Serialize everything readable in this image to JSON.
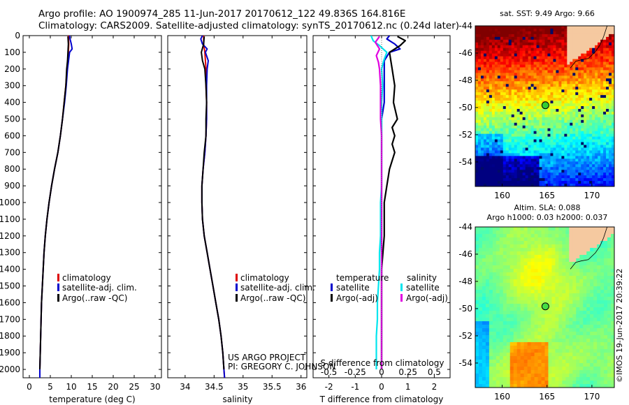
{
  "title_line1": "Argo profile: AO 1900974_285 11-Jun-2017 20170612_122 49.836S 164.816E",
  "title_line2": "Climatology: CARS2009. Satellite-adjusted climatology: synTS_20170612.nc (0.24d later)",
  "colors": {
    "climatology": "#dd0000",
    "satellite": "#0000cc",
    "argo": "#000000",
    "sal_satellite": "#00e5ee",
    "sal_argo": "#e000e0"
  },
  "chart_data": [
    {
      "type": "line",
      "id": "temperature",
      "xlabel": "temperature (deg C)",
      "ylabel": "",
      "xlim": [
        -1.5,
        31.5
      ],
      "ylim": [
        2050,
        0
      ],
      "x_ticks": [
        0,
        5,
        10,
        15,
        20,
        25,
        30
      ],
      "x_tick_labels": [
        "0",
        "5",
        "10",
        "15",
        "20",
        "25",
        "30"
      ],
      "y_ticks": [
        0,
        100,
        200,
        300,
        400,
        500,
        600,
        700,
        800,
        900,
        1000,
        1100,
        1200,
        1300,
        1400,
        1500,
        1600,
        1700,
        1800,
        1900,
        2000
      ],
      "y_tick_labels": [
        "0",
        "100",
        "200",
        "300",
        "400",
        "500",
        "600",
        "700",
        "800",
        "900",
        "1000",
        "1100",
        "1200",
        "1300",
        "1400",
        "1500",
        "1600",
        "1700",
        "1800",
        "1900",
        "2000"
      ],
      "legend": [
        "climatology",
        "satellite-adj. clim.",
        "Argo(..raw -QC)"
      ],
      "series": [
        {
          "name": "climatology",
          "color_key": "climatology",
          "depth": [
            0,
            50,
            100,
            200,
            300,
            400,
            500,
            600,
            700,
            800,
            900,
            1000,
            1100,
            1200,
            1300,
            1400,
            1500,
            1600,
            1700,
            1800,
            1900,
            2000,
            2050
          ],
          "values": [
            9.3,
            9.4,
            9.3,
            9.0,
            8.7,
            8.3,
            7.9,
            7.4,
            6.8,
            6.0,
            5.3,
            4.7,
            4.2,
            3.8,
            3.5,
            3.3,
            3.1,
            2.9,
            2.8,
            2.7,
            2.6,
            2.5,
            2.5
          ]
        },
        {
          "name": "satellite-adj. clim.",
          "color_key": "satellite",
          "depth": [
            0,
            20,
            50,
            80,
            100,
            200,
            300,
            400,
            500,
            600,
            700,
            800,
            900,
            1000,
            1100,
            1200,
            1300,
            1400,
            1500,
            1600,
            1700,
            1800,
            1900,
            2000,
            2050
          ],
          "values": [
            9.6,
            9.7,
            10.0,
            10.2,
            9.6,
            9.1,
            8.8,
            8.4,
            7.9,
            7.4,
            6.8,
            6.0,
            5.3,
            4.7,
            4.2,
            3.8,
            3.5,
            3.3,
            3.1,
            2.9,
            2.8,
            2.7,
            2.6,
            2.5,
            2.5
          ]
        },
        {
          "name": "Argo(..raw -QC)",
          "color_key": "argo",
          "depth": [
            5,
            50,
            100,
            150,
            200,
            300,
            400,
            500,
            600,
            700,
            800,
            900,
            1000,
            1100,
            1200,
            1300,
            1400,
            1500,
            1600,
            1700,
            1800,
            1900,
            2000
          ],
          "values": [
            9.2,
            9.3,
            9.2,
            9.1,
            8.9,
            8.7,
            8.3,
            7.9,
            7.4,
            6.8,
            6.0,
            5.3,
            4.7,
            4.2,
            3.8,
            3.5,
            3.3,
            3.1,
            2.9,
            2.8,
            2.7,
            2.6,
            2.5
          ]
        }
      ]
    },
    {
      "type": "line",
      "id": "salinity",
      "xlabel": "salinity",
      "xlim": [
        33.7,
        36.1
      ],
      "ylim": [
        2050,
        0
      ],
      "x_ticks": [
        34,
        34.5,
        35,
        35.5,
        36
      ],
      "x_tick_labels": [
        "34",
        "34.5",
        "35",
        "35.5",
        "36"
      ],
      "legend": [
        "climatology",
        "satellite-adj. clim.",
        "Argo(..raw -QC)"
      ],
      "series": [
        {
          "name": "climatology",
          "color_key": "climatology",
          "depth": [
            0,
            50,
            100,
            200,
            300,
            400,
            500,
            600,
            700,
            800,
            900,
            1000,
            1100,
            1200,
            1300,
            1400,
            1500,
            1600,
            1700,
            1800,
            1900,
            2000,
            2050
          ],
          "values": [
            34.32,
            34.32,
            34.34,
            34.36,
            34.36,
            34.37,
            34.37,
            34.36,
            34.34,
            34.31,
            34.29,
            34.29,
            34.3,
            34.33,
            34.38,
            34.43,
            34.48,
            34.53,
            34.58,
            34.62,
            34.65,
            34.67,
            34.68
          ]
        },
        {
          "name": "satellite-adj. clim.",
          "color_key": "satellite",
          "depth": [
            0,
            20,
            50,
            80,
            100,
            150,
            200,
            300,
            400,
            500,
            600,
            700,
            800,
            900,
            1000,
            1100,
            1200,
            1300,
            1400,
            1500,
            1600,
            1700,
            1800,
            1900,
            2000,
            2050
          ],
          "values": [
            34.3,
            34.27,
            34.3,
            34.38,
            34.35,
            34.4,
            34.38,
            34.37,
            34.37,
            34.37,
            34.36,
            34.34,
            34.31,
            34.29,
            34.29,
            34.3,
            34.33,
            34.38,
            34.43,
            34.48,
            34.53,
            34.58,
            34.62,
            34.65,
            34.67,
            34.68
          ]
        },
        {
          "name": "Argo(..raw -QC)",
          "color_key": "argo",
          "depth": [
            5,
            50,
            100,
            150,
            200,
            300,
            400,
            500,
            600,
            700,
            800,
            900,
            1000,
            1100,
            1200,
            1300,
            1400,
            1500,
            1600,
            1700,
            1800,
            1900,
            2000
          ],
          "values": [
            34.33,
            34.32,
            34.28,
            34.3,
            34.34,
            34.36,
            34.37,
            34.36,
            34.36,
            34.33,
            34.31,
            34.29,
            34.29,
            34.3,
            34.33,
            34.38,
            34.43,
            34.48,
            34.53,
            34.58,
            34.62,
            34.65,
            34.67
          ]
        }
      ],
      "annotation_lines": [
        "US ARGO PROJECT",
        "PI: GREGORY C. JOHNSON"
      ]
    },
    {
      "type": "line",
      "id": "difference",
      "xlabel": "T difference from climatology",
      "xlabel_top": "S difference from climatology",
      "xlim": [
        -2.6,
        2.6
      ],
      "ylim": [
        2050,
        0
      ],
      "x_ticks": [
        -2,
        -1,
        0,
        1,
        2
      ],
      "x_tick_labels": [
        "-2",
        "-1",
        "0",
        "1",
        "2"
      ],
      "s_ticks": [
        -0.5,
        -0.25,
        0,
        0.25,
        0.5
      ],
      "s_tick_labels": [
        "-0.5",
        "-0.25",
        "0",
        "0.25",
        "0.5"
      ],
      "s_scale": 4,
      "legend_temperature_title": "temperature",
      "legend_salinity_title": "salinity",
      "legend_temperature": [
        "satellite",
        "Argo(-adj)"
      ],
      "legend_salinity": [
        "satellite",
        "Argo(-adj)"
      ],
      "series": [
        {
          "name": "T satellite",
          "color_key": "satellite",
          "depth": [
            0,
            20,
            50,
            80,
            100,
            150,
            200,
            300,
            400,
            500,
            600,
            700,
            800,
            900,
            1000,
            1200,
            1400,
            1600,
            1800,
            2000
          ],
          "values": [
            0.3,
            0.2,
            0.5,
            0.7,
            0.3,
            0.1,
            0.1,
            0.1,
            0.1,
            0.0,
            0.0,
            0.0,
            0.0,
            0.0,
            0.0,
            0.0,
            0.0,
            0.0,
            0.0,
            0.0
          ]
        },
        {
          "name": "T Argo(-adj)",
          "color_key": "argo",
          "depth": [
            5,
            30,
            60,
            100,
            150,
            200,
            300,
            400,
            500,
            550,
            600,
            650,
            700,
            800,
            900,
            1000,
            1200,
            1400,
            1600,
            1800,
            2000
          ],
          "values": [
            0.6,
            0.9,
            0.7,
            0.3,
            0.35,
            0.4,
            0.5,
            0.45,
            0.6,
            0.4,
            0.5,
            0.4,
            0.5,
            0.3,
            0.2,
            0.1,
            0.1,
            0.0,
            0.0,
            0.0,
            0.0
          ]
        },
        {
          "name": "S satellite",
          "color_key": "sal_satellite",
          "depth": [
            0,
            30,
            60,
            100,
            150,
            200,
            300,
            400,
            500,
            600,
            700,
            800,
            900,
            1000,
            1100,
            1200,
            1300,
            1400,
            1500,
            1600,
            1700,
            1800,
            1900,
            2000
          ],
          "values": [
            -0.1,
            -0.08,
            -0.02,
            0.05,
            0.02,
            0.0,
            0.01,
            0.0,
            0.0,
            0.0,
            0.0,
            0.0,
            0.0,
            -0.01,
            -0.01,
            -0.01,
            -0.02,
            -0.02,
            -0.03,
            -0.04,
            -0.04,
            -0.05,
            -0.05,
            -0.05
          ]
        },
        {
          "name": "S Argo(-adj)",
          "color_key": "sal_argo",
          "depth": [
            5,
            40,
            80,
            120,
            160,
            200,
            300,
            400,
            500,
            600,
            700,
            800,
            900,
            1000,
            1100,
            1200,
            1300,
            1400,
            1600,
            1800,
            2000
          ],
          "values": [
            -0.02,
            -0.06,
            -0.02,
            -0.05,
            -0.03,
            -0.02,
            -0.01,
            -0.01,
            -0.01,
            0.0,
            0.0,
            0.0,
            0.0,
            0.0,
            0.0,
            0.0,
            0.0,
            0.0,
            0.0,
            0.0,
            0.0
          ]
        }
      ]
    },
    {
      "type": "heatmap",
      "id": "sst_map",
      "title": "sat. SST: 9.49 Argo: 9.66",
      "xlim": [
        157,
        172.5
      ],
      "ylim": [
        -55.8,
        -44
      ],
      "x_ticks": [
        160,
        165,
        170
      ],
      "x_tick_labels": [
        "160",
        "165",
        "170"
      ],
      "y_ticks": [
        -44,
        -46,
        -48,
        -50,
        -52,
        -54
      ],
      "y_tick_labels": [
        "-44",
        "-46",
        "-48",
        "-50",
        "-52",
        "-54"
      ],
      "marker": {
        "lon": 164.816,
        "lat": -49.836
      }
    },
    {
      "type": "heatmap",
      "id": "sla_map",
      "title_line1": "Altim. SLA: 0.088",
      "title_line2": "Argo h1000: 0.03 h2000: 0.037",
      "xlim": [
        157,
        172.5
      ],
      "ylim": [
        -55.8,
        -44
      ],
      "x_ticks": [
        160,
        165,
        170
      ],
      "x_tick_labels": [
        "160",
        "165",
        "170"
      ],
      "y_ticks": [
        -44,
        -46,
        -48,
        -50,
        -52,
        -54
      ],
      "y_tick_labels": [
        "-44",
        "-46",
        "-48",
        "-50",
        "-52",
        "-54"
      ],
      "marker": {
        "lon": 164.816,
        "lat": -49.836
      }
    }
  ],
  "watermark": "©IMOS 19-Jun-2017 20:39:22"
}
